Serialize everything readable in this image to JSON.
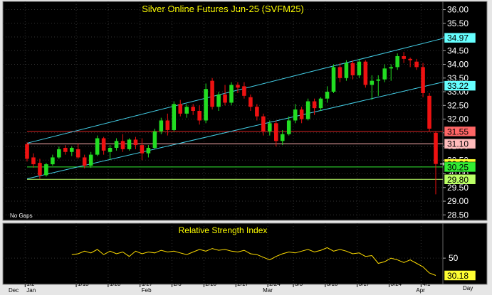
{
  "chart_data": {
    "type": "candlestick",
    "title": "Silver Online Futures Jun-25 (SVFM25)",
    "note": "No Gaps",
    "bar_period": "Day",
    "y_ticks": [
      "36.00",
      "35.50",
      "35.00",
      "34.50",
      "34.00",
      "33.50",
      "33.00",
      "32.50",
      "32.00",
      "31.50",
      "31.00",
      "30.50",
      "30.00",
      "29.50",
      "29.00",
      "28.50"
    ],
    "ylim": [
      28.3,
      36.3
    ],
    "date_ticks": [
      "1/2",
      "1/13",
      "1/20",
      "1/27",
      "2/3",
      "2/10",
      "2/17",
      "2/24",
      "3/3",
      "3/10",
      "3/17",
      "3/24",
      "4/1"
    ],
    "month_labels": [
      "Dec",
      "Jan",
      "Feb",
      "Mar",
      "Apr"
    ],
    "price_labels": [
      {
        "text": "34.97",
        "color": "#66ffff"
      },
      {
        "text": "33.22",
        "color": "#66ffff"
      },
      {
        "text": "31.55",
        "color": "#ff6666"
      },
      {
        "text": "31.10",
        "color": "#ffbbbb"
      },
      {
        "text": "30.36",
        "color": "#ffff33"
      },
      {
        "text": "30.25",
        "color": "#33ee33"
      },
      {
        "text": "29.80",
        "color": "#bbff66"
      }
    ],
    "horizontal_lines": [
      {
        "value": 31.55,
        "color": "#dd2222"
      },
      {
        "value": 31.1,
        "color": "#ffb0b0"
      },
      {
        "value": 30.25,
        "color": "#33ee33"
      },
      {
        "value": 29.8,
        "color": "#bbff66"
      }
    ],
    "channel": {
      "color": "#44d0e8",
      "upper": {
        "from": [
          0,
          31.12
        ],
        "to": [
          66,
          35.0
        ]
      },
      "lower": {
        "from": [
          0,
          29.82
        ],
        "to": [
          66,
          33.4
        ]
      }
    },
    "last_price_marker": 30.36,
    "ohlc": [
      [
        31.08,
        31.15,
        30.45,
        30.55
      ],
      [
        30.6,
        30.75,
        30.22,
        30.35
      ],
      [
        30.4,
        30.55,
        29.82,
        29.95
      ],
      [
        29.95,
        30.4,
        29.9,
        30.35
      ],
      [
        30.35,
        30.7,
        30.3,
        30.6
      ],
      [
        30.6,
        31.0,
        30.55,
        30.9
      ],
      [
        30.95,
        31.05,
        30.7,
        30.8
      ],
      [
        30.8,
        31.0,
        30.65,
        30.95
      ],
      [
        30.9,
        31.1,
        30.55,
        30.6
      ],
      [
        30.6,
        30.7,
        30.2,
        30.3
      ],
      [
        30.3,
        30.8,
        30.22,
        30.7
      ],
      [
        30.7,
        31.4,
        30.65,
        31.3
      ],
      [
        31.3,
        31.35,
        30.7,
        30.85
      ],
      [
        30.8,
        31.05,
        30.5,
        30.95
      ],
      [
        30.95,
        31.3,
        30.85,
        31.2
      ],
      [
        31.2,
        31.45,
        30.8,
        30.9
      ],
      [
        30.9,
        31.3,
        30.85,
        31.25
      ],
      [
        31.25,
        31.35,
        30.9,
        31.05
      ],
      [
        31.05,
        31.3,
        30.5,
        30.75
      ],
      [
        30.75,
        31.05,
        30.6,
        30.95
      ],
      [
        30.95,
        31.65,
        30.9,
        31.55
      ],
      [
        31.55,
        32.05,
        31.45,
        31.95
      ],
      [
        31.95,
        32.2,
        31.4,
        31.6
      ],
      [
        31.6,
        32.65,
        31.55,
        32.55
      ],
      [
        32.55,
        32.7,
        32.1,
        32.2
      ],
      [
        32.2,
        32.55,
        32.05,
        32.45
      ],
      [
        32.45,
        32.55,
        32.15,
        32.3
      ],
      [
        32.3,
        32.5,
        31.8,
        31.95
      ],
      [
        31.95,
        33.3,
        31.85,
        33.1
      ],
      [
        33.4,
        33.5,
        32.35,
        32.45
      ],
      [
        32.45,
        33.0,
        32.3,
        32.9
      ],
      [
        32.9,
        33.25,
        32.5,
        32.6
      ],
      [
        32.6,
        33.35,
        32.5,
        33.25
      ],
      [
        33.25,
        33.35,
        32.95,
        33.15
      ],
      [
        33.2,
        33.35,
        32.75,
        32.85
      ],
      [
        32.8,
        32.9,
        32.3,
        32.45
      ],
      [
        32.45,
        32.55,
        31.95,
        32.1
      ],
      [
        32.1,
        32.2,
        31.4,
        31.55
      ],
      [
        31.55,
        31.95,
        31.4,
        31.85
      ],
      [
        31.85,
        31.95,
        31.0,
        31.2
      ],
      [
        31.2,
        31.6,
        31.05,
        31.45
      ],
      [
        31.45,
        32.1,
        31.4,
        31.95
      ],
      [
        31.95,
        32.55,
        31.85,
        32.35
      ],
      [
        32.35,
        32.45,
        31.85,
        32.0
      ],
      [
        32.0,
        32.75,
        31.95,
        32.65
      ],
      [
        32.65,
        32.75,
        32.15,
        32.4
      ],
      [
        32.4,
        32.8,
        32.3,
        32.75
      ],
      [
        32.75,
        33.2,
        32.6,
        33.0
      ],
      [
        33.0,
        34.0,
        32.95,
        33.9
      ],
      [
        33.9,
        34.05,
        33.35,
        33.5
      ],
      [
        33.5,
        34.15,
        33.4,
        34.05
      ],
      [
        34.05,
        34.15,
        33.45,
        33.6
      ],
      [
        33.6,
        34.2,
        33.5,
        34.1
      ],
      [
        34.1,
        34.15,
        33.15,
        33.25
      ],
      [
        33.25,
        33.6,
        32.7,
        33.4
      ],
      [
        33.4,
        33.6,
        32.85,
        33.45
      ],
      [
        33.45,
        34.0,
        33.35,
        33.85
      ],
      [
        33.85,
        34.0,
        33.4,
        33.9
      ],
      [
        33.9,
        34.4,
        33.8,
        34.3
      ],
      [
        34.3,
        34.45,
        34.05,
        34.2
      ],
      [
        34.2,
        34.25,
        33.9,
        34.15
      ],
      [
        34.1,
        34.2,
        33.8,
        33.9
      ],
      [
        33.9,
        34.05,
        32.8,
        32.95
      ],
      [
        32.85,
        32.95,
        31.55,
        31.65
      ],
      [
        31.5,
        31.55,
        29.25,
        30.36
      ]
    ],
    "rsi": {
      "title": "Relative Strength Index",
      "current": "30.18",
      "y_ticks": [
        "50"
      ],
      "ylim": [
        20,
        90
      ],
      "values": [
        54,
        55,
        58,
        56,
        60,
        54,
        58,
        55,
        57,
        52,
        58,
        55,
        57,
        56,
        59,
        57,
        58,
        56,
        54,
        57,
        60,
        58,
        61,
        59,
        60,
        58,
        57,
        59,
        55,
        54,
        51,
        48,
        52,
        55,
        57,
        56,
        58,
        60,
        57,
        59,
        62,
        58,
        60,
        58,
        55,
        56,
        52,
        53,
        44,
        46,
        50,
        48,
        45,
        48,
        44,
        40,
        33,
        30.18
      ]
    },
    "colors": {
      "up": "#22dd22",
      "down": "#ee1111",
      "background": "#000000",
      "frame": "#e6e6e6",
      "title": "#ffff00",
      "axis_text": "#ffffff",
      "rsi_line": "#ffdd00"
    }
  }
}
